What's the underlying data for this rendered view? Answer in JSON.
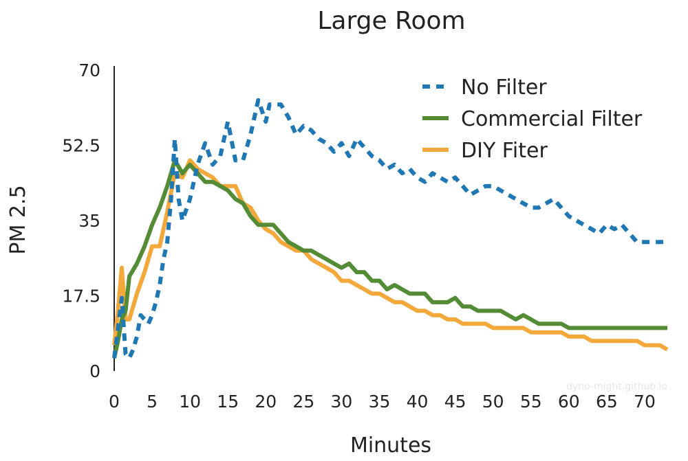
{
  "chart_data": {
    "type": "line",
    "title": "Large Room",
    "xlabel": "Minutes",
    "ylabel": "PM 2.5",
    "xlim": [
      0,
      73
    ],
    "ylim": [
      0,
      70
    ],
    "x_ticks": [
      0,
      5,
      10,
      15,
      20,
      25,
      30,
      35,
      40,
      45,
      50,
      55,
      60,
      65,
      70
    ],
    "y_ticks": [
      0,
      17.5,
      35,
      52.5,
      70
    ],
    "y_tick_labels": [
      "0",
      "17.5",
      "35",
      "52.5",
      "70"
    ],
    "grid": false,
    "legend_position": "top-right",
    "watermark": "dyno-might.github.io",
    "series": [
      {
        "name": "No Filter",
        "color": "#1f77b4",
        "dash": "dotted",
        "points": [
          [
            0,
            3
          ],
          [
            0.5,
            10
          ],
          [
            1,
            17
          ],
          [
            1.5,
            4
          ],
          [
            2,
            3
          ],
          [
            2.5,
            5
          ],
          [
            3,
            8
          ],
          [
            3.5,
            13
          ],
          [
            4,
            12
          ],
          [
            4.5,
            11
          ],
          [
            5,
            13
          ],
          [
            5.5,
            16
          ],
          [
            6,
            20
          ],
          [
            6.5,
            26
          ],
          [
            7,
            30
          ],
          [
            7.5,
            40
          ],
          [
            8,
            54
          ],
          [
            8.5,
            40
          ],
          [
            9,
            35
          ],
          [
            10,
            40
          ],
          [
            11,
            48
          ],
          [
            12,
            53
          ],
          [
            13,
            48
          ],
          [
            14,
            50
          ],
          [
            15,
            58
          ],
          [
            16,
            49
          ],
          [
            17,
            49
          ],
          [
            18,
            55
          ],
          [
            19,
            63
          ],
          [
            20,
            58
          ],
          [
            20.5,
            62
          ],
          [
            22,
            62
          ],
          [
            23,
            59
          ],
          [
            24,
            55
          ],
          [
            25,
            57
          ],
          [
            26,
            56
          ],
          [
            27,
            54
          ],
          [
            28,
            53
          ],
          [
            29,
            51
          ],
          [
            30,
            53
          ],
          [
            31,
            50
          ],
          [
            32,
            54
          ],
          [
            33,
            52
          ],
          [
            34,
            50
          ],
          [
            35,
            49
          ],
          [
            36,
            47
          ],
          [
            37,
            48
          ],
          [
            38,
            46
          ],
          [
            39,
            47
          ],
          [
            40,
            45
          ],
          [
            41,
            44
          ],
          [
            42,
            46
          ],
          [
            43,
            45
          ],
          [
            44,
            44
          ],
          [
            45,
            45
          ],
          [
            46,
            43
          ],
          [
            47,
            41
          ],
          [
            48,
            42
          ],
          [
            49,
            43
          ],
          [
            50,
            43
          ],
          [
            51,
            42
          ],
          [
            52,
            41
          ],
          [
            53,
            40
          ],
          [
            54,
            39
          ],
          [
            55,
            38
          ],
          [
            56,
            38
          ],
          [
            57,
            39
          ],
          [
            58,
            40
          ],
          [
            59,
            38
          ],
          [
            60,
            36
          ],
          [
            61,
            35
          ],
          [
            62,
            34
          ],
          [
            63,
            33
          ],
          [
            64,
            32
          ],
          [
            65,
            34
          ],
          [
            66,
            33
          ],
          [
            67,
            34
          ],
          [
            68,
            32
          ],
          [
            69,
            30
          ],
          [
            70,
            30
          ],
          [
            71,
            30
          ],
          [
            72,
            30
          ],
          [
            73,
            30
          ]
        ]
      },
      {
        "name": "Commercial Filter",
        "color": "#548c36",
        "dash": "solid",
        "points": [
          [
            0,
            3
          ],
          [
            0.5,
            7
          ],
          [
            1,
            12
          ],
          [
            1.5,
            14
          ],
          [
            2,
            22
          ],
          [
            3,
            25
          ],
          [
            4,
            29
          ],
          [
            5,
            34
          ],
          [
            6,
            38
          ],
          [
            7,
            43
          ],
          [
            8,
            49
          ],
          [
            9,
            46
          ],
          [
            10,
            48
          ],
          [
            11,
            46
          ],
          [
            12,
            44
          ],
          [
            13,
            44
          ],
          [
            14,
            43
          ],
          [
            15,
            42
          ],
          [
            16,
            40
          ],
          [
            17,
            39
          ],
          [
            18,
            36
          ],
          [
            19,
            34
          ],
          [
            20,
            34
          ],
          [
            21,
            34
          ],
          [
            22,
            32
          ],
          [
            23,
            30
          ],
          [
            24,
            29
          ],
          [
            25,
            28
          ],
          [
            26,
            28
          ],
          [
            27,
            27
          ],
          [
            28,
            26
          ],
          [
            29,
            25
          ],
          [
            30,
            24
          ],
          [
            31,
            25
          ],
          [
            32,
            23
          ],
          [
            33,
            23
          ],
          [
            34,
            21
          ],
          [
            35,
            21
          ],
          [
            36,
            19
          ],
          [
            37,
            20
          ],
          [
            38,
            19
          ],
          [
            39,
            18
          ],
          [
            40,
            18
          ],
          [
            41,
            18
          ],
          [
            42,
            16
          ],
          [
            43,
            16
          ],
          [
            44,
            16
          ],
          [
            45,
            17
          ],
          [
            46,
            15
          ],
          [
            47,
            15
          ],
          [
            48,
            14
          ],
          [
            49,
            14
          ],
          [
            50,
            14
          ],
          [
            51,
            14
          ],
          [
            52,
            13
          ],
          [
            53,
            12
          ],
          [
            54,
            13
          ],
          [
            55,
            12
          ],
          [
            56,
            11
          ],
          [
            57,
            11
          ],
          [
            58,
            11
          ],
          [
            59,
            11
          ],
          [
            60,
            10
          ],
          [
            61,
            10
          ],
          [
            62,
            10
          ],
          [
            63,
            10
          ],
          [
            64,
            10
          ],
          [
            65,
            10
          ],
          [
            66,
            10
          ],
          [
            67,
            10
          ],
          [
            68,
            10
          ],
          [
            69,
            10
          ],
          [
            70,
            10
          ],
          [
            71,
            10
          ],
          [
            72,
            10
          ],
          [
            73,
            10
          ]
        ]
      },
      {
        "name": "DIY Fiter",
        "color": "#f2a83a",
        "dash": "solid",
        "points": [
          [
            0,
            6
          ],
          [
            0.5,
            14
          ],
          [
            1,
            24
          ],
          [
            1.5,
            12
          ],
          [
            2,
            12
          ],
          [
            3,
            18
          ],
          [
            4,
            23
          ],
          [
            5,
            29
          ],
          [
            6,
            29
          ],
          [
            7,
            37
          ],
          [
            8,
            46
          ],
          [
            9,
            45
          ],
          [
            10,
            49
          ],
          [
            11,
            47
          ],
          [
            12,
            46
          ],
          [
            13,
            45
          ],
          [
            14,
            43
          ],
          [
            15,
            43
          ],
          [
            16,
            43
          ],
          [
            17,
            39
          ],
          [
            18,
            38
          ],
          [
            19,
            35
          ],
          [
            20,
            33
          ],
          [
            21,
            32
          ],
          [
            22,
            30
          ],
          [
            23,
            29
          ],
          [
            24,
            28
          ],
          [
            25,
            28
          ],
          [
            26,
            26
          ],
          [
            27,
            25
          ],
          [
            28,
            24
          ],
          [
            29,
            23
          ],
          [
            30,
            21
          ],
          [
            31,
            21
          ],
          [
            32,
            20
          ],
          [
            33,
            19
          ],
          [
            34,
            18
          ],
          [
            35,
            18
          ],
          [
            36,
            17
          ],
          [
            37,
            16
          ],
          [
            38,
            16
          ],
          [
            39,
            15
          ],
          [
            40,
            14
          ],
          [
            41,
            14
          ],
          [
            42,
            13
          ],
          [
            43,
            13
          ],
          [
            44,
            12
          ],
          [
            45,
            12
          ],
          [
            46,
            11
          ],
          [
            47,
            11
          ],
          [
            48,
            11
          ],
          [
            49,
            11
          ],
          [
            50,
            10
          ],
          [
            51,
            10
          ],
          [
            52,
            10
          ],
          [
            53,
            10
          ],
          [
            54,
            10
          ],
          [
            55,
            9
          ],
          [
            56,
            9
          ],
          [
            57,
            9
          ],
          [
            58,
            9
          ],
          [
            59,
            9
          ],
          [
            60,
            8
          ],
          [
            61,
            8
          ],
          [
            62,
            8
          ],
          [
            63,
            7
          ],
          [
            64,
            7
          ],
          [
            65,
            7
          ],
          [
            66,
            7
          ],
          [
            67,
            7
          ],
          [
            68,
            7
          ],
          [
            69,
            7
          ],
          [
            70,
            6
          ],
          [
            71,
            6
          ],
          [
            72,
            6
          ],
          [
            73,
            5
          ]
        ]
      }
    ]
  }
}
